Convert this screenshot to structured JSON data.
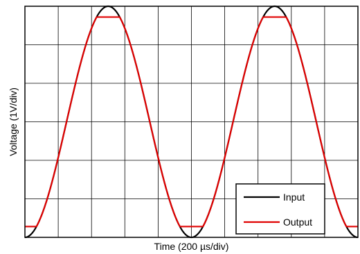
{
  "chart_data": {
    "type": "line",
    "title": "",
    "xlabel": "Time (200 µs/div)",
    "ylabel": "Voltage (1V/div)",
    "xlim": [
      0,
      10
    ],
    "ylim": [
      0,
      6
    ],
    "x_unit": "div",
    "y_unit": "div",
    "grid": true,
    "legend_position": "bottom-right",
    "series": [
      {
        "name": "Input",
        "color": "#000000",
        "waveform": "sine",
        "period_div": 5,
        "min_div": 0,
        "max_div": 6
      },
      {
        "name": "Output",
        "color": "#e00000",
        "waveform": "clipped sine",
        "period_div": 5,
        "min_div": 0,
        "max_div": 6,
        "clip_low_div": 0.28,
        "clip_high_div": 5.72
      }
    ]
  }
}
